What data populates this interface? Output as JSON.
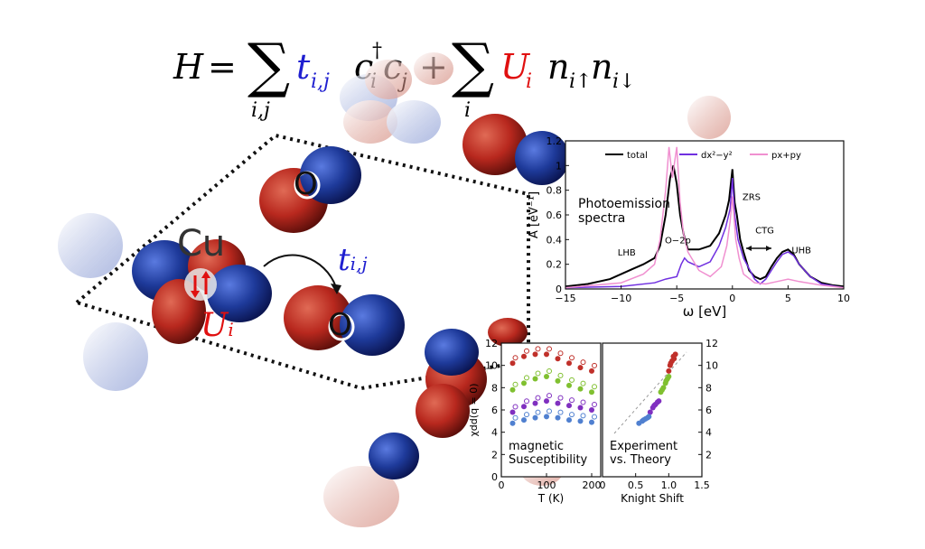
{
  "equation": {
    "lhs": "H",
    "equals": "=",
    "sum1_index": "i,j",
    "t": "t",
    "t_sub": "i,j",
    "c_dag": "c",
    "c_dag_sup": "†",
    "c_dag_sub": "i",
    "c": "c",
    "c_sub": "j",
    "plus": "+",
    "sum2_index": "i",
    "U": "U",
    "U_sub": "i",
    "n1": "n",
    "n1_sub": "i↑",
    "n2": "n",
    "n2_sub": "i↓"
  },
  "diagram": {
    "cu_label": "Cu",
    "o_label_1": "O",
    "o_label_2": "O",
    "hopping_label": "t",
    "hopping_sub": "i,j",
    "interaction_label": "U",
    "interaction_sub": "i",
    "colors": {
      "red": "#e01010",
      "blue": "#1f1fd0",
      "orbital_red": "#b8281e",
      "orbital_blue": "#1e3a9a"
    }
  },
  "chart_data": [
    {
      "type": "line",
      "title": "",
      "annotation": "Photoemission spectra",
      "xlabel": "ω [eV]",
      "ylabel": "A [eV⁻¹]",
      "xlim": [
        -15,
        10
      ],
      "ylim": [
        0,
        1.2
      ],
      "xticks": [
        "−15",
        "−10",
        "−5",
        "0",
        "5",
        "10"
      ],
      "yticks": [
        "0",
        "0.2",
        "0.4",
        "0.6",
        "0.8",
        "1",
        "1.2"
      ],
      "legend": [
        "total",
        "dx²−y²",
        "px+py"
      ],
      "legend_placement": "top",
      "peak_labels": [
        "LHB",
        "O−2p",
        "ZRS",
        "CTG",
        "UHB"
      ],
      "series": [
        {
          "name": "total",
          "color": "#000000",
          "x": [
            -15,
            -13,
            -11,
            -10,
            -9,
            -8,
            -7,
            -6.5,
            -6,
            -5.6,
            -5.3,
            -5,
            -4.7,
            -4.4,
            -4,
            -3,
            -2,
            -1.2,
            -0.6,
            -0.3,
            0,
            0.2,
            0.4,
            0.7,
            1,
            1.5,
            2,
            2.5,
            3,
            3.5,
            4,
            4.5,
            5,
            5.5,
            6,
            7,
            8,
            9,
            10
          ],
          "y": [
            0.02,
            0.04,
            0.08,
            0.12,
            0.16,
            0.2,
            0.25,
            0.35,
            0.6,
            0.9,
            1.0,
            0.85,
            0.6,
            0.45,
            0.32,
            0.32,
            0.35,
            0.45,
            0.6,
            0.72,
            0.97,
            0.7,
            0.6,
            0.4,
            0.3,
            0.15,
            0.1,
            0.08,
            0.1,
            0.18,
            0.25,
            0.3,
            0.32,
            0.28,
            0.2,
            0.1,
            0.05,
            0.03,
            0.02
          ]
        },
        {
          "name": "dx²−y²",
          "color": "#7030e0",
          "x": [
            -15,
            -10,
            -7,
            -6,
            -5,
            -4.6,
            -4.3,
            -4,
            -3,
            -2,
            -1.2,
            -0.6,
            -0.2,
            0,
            0.2,
            0.5,
            1,
            2,
            2.5,
            3,
            3.5,
            4,
            4.5,
            5,
            5.5,
            6,
            7,
            8,
            10
          ],
          "y": [
            0.01,
            0.02,
            0.05,
            0.08,
            0.1,
            0.2,
            0.25,
            0.22,
            0.18,
            0.22,
            0.35,
            0.5,
            0.65,
            0.9,
            0.6,
            0.4,
            0.25,
            0.08,
            0.04,
            0.08,
            0.15,
            0.22,
            0.28,
            0.3,
            0.27,
            0.2,
            0.1,
            0.04,
            0.01
          ]
        },
        {
          "name": "px+py",
          "color": "#f090d0",
          "x": [
            -15,
            -10,
            -8,
            -7,
            -6.5,
            -6,
            -5.7,
            -5.4,
            -5,
            -4.7,
            -4.4,
            -4,
            -3,
            -2,
            -1,
            -0.5,
            -0.2,
            0,
            0.3,
            0.6,
            1,
            2,
            3,
            4,
            5,
            6,
            8,
            10
          ],
          "y": [
            0.01,
            0.05,
            0.12,
            0.2,
            0.4,
            0.8,
            1.15,
            0.9,
            1.15,
            0.7,
            0.45,
            0.3,
            0.15,
            0.1,
            0.18,
            0.35,
            0.55,
            0.75,
            0.4,
            0.25,
            0.12,
            0.05,
            0.04,
            0.06,
            0.08,
            0.06,
            0.03,
            0.01
          ]
        }
      ]
    },
    {
      "type": "scatter",
      "annotation": "magnetic Susceptibility",
      "xlabel": "T (K)",
      "ylabel": "χdd(q = 0)",
      "xlim": [
        0,
        220
      ],
      "ylim": [
        0,
        12
      ],
      "xticks": [
        "0",
        "100",
        "200"
      ],
      "yticks": [
        "0",
        "2",
        "4",
        "6",
        "8",
        "10",
        "12"
      ],
      "series": [
        {
          "color": "#c0302a",
          "x": [
            25,
            50,
            75,
            100,
            125,
            150,
            175,
            200
          ],
          "y": [
            10.2,
            10.8,
            11.0,
            11.0,
            10.6,
            10.2,
            9.8,
            9.5
          ]
        },
        {
          "color": "#80c030",
          "x": [
            25,
            50,
            75,
            100,
            125,
            150,
            175,
            200
          ],
          "y": [
            7.8,
            8.4,
            8.8,
            9.0,
            8.6,
            8.2,
            7.9,
            7.6
          ]
        },
        {
          "color": "#8030c0",
          "x": [
            25,
            50,
            75,
            100,
            125,
            150,
            175,
            200
          ],
          "y": [
            5.8,
            6.3,
            6.6,
            6.8,
            6.6,
            6.4,
            6.2,
            6.0
          ]
        },
        {
          "color": "#5080d0",
          "x": [
            25,
            50,
            75,
            100,
            125,
            150,
            175,
            200
          ],
          "y": [
            4.8,
            5.1,
            5.3,
            5.4,
            5.3,
            5.1,
            5.0,
            4.9
          ]
        }
      ]
    },
    {
      "type": "scatter",
      "annotation": "Experiment vs. Theory",
      "xlabel": "Knight Shift",
      "ylabel": "",
      "xlim": [
        0,
        1.5
      ],
      "ylim": [
        0,
        12
      ],
      "xticks": [
        "0",
        "0.5",
        "1.0",
        "1.5"
      ],
      "yticks": [
        "2",
        "4",
        "6",
        "8",
        "10",
        "12"
      ],
      "series": [
        {
          "color": "#c0302a",
          "x": [
            1.0,
            1.02,
            1.05,
            1.07,
            1.1,
            1.03,
            1.08
          ],
          "y": [
            9.5,
            10.0,
            10.4,
            10.8,
            11.0,
            10.2,
            10.6
          ]
        },
        {
          "color": "#80c030",
          "x": [
            0.88,
            0.92,
            0.95,
            0.98,
            1.0,
            0.9,
            0.96
          ],
          "y": [
            7.6,
            8.0,
            8.4,
            8.8,
            9.0,
            7.8,
            8.6
          ]
        },
        {
          "color": "#8030c0",
          "x": [
            0.72,
            0.76,
            0.8,
            0.83,
            0.85,
            0.78
          ],
          "y": [
            5.8,
            6.2,
            6.5,
            6.7,
            6.8,
            6.4
          ]
        },
        {
          "color": "#5080d0",
          "x": [
            0.55,
            0.6,
            0.65,
            0.68,
            0.7,
            0.62
          ],
          "y": [
            4.8,
            5.0,
            5.2,
            5.3,
            5.4,
            5.1
          ]
        }
      ]
    }
  ]
}
